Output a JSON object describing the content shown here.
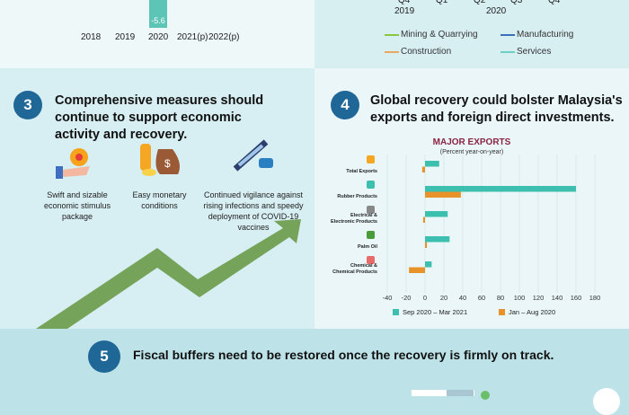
{
  "top_left": {
    "bar_label": "-5.6",
    "years": [
      "2018",
      "2019",
      "2020",
      "2021(p)",
      "2022(p)"
    ],
    "bar_color": "#5cc5b5"
  },
  "top_right": {
    "quarters": [
      "Q4",
      "Q1",
      "Q2",
      "Q3",
      "Q4"
    ],
    "years": [
      "2019",
      "2020"
    ],
    "legend": [
      {
        "label": "Mining & Quarrying",
        "color": "#8cc63f"
      },
      {
        "label": "Manufacturing",
        "color": "#3b6fb6"
      },
      {
        "label": "Construction",
        "color": "#e8a860"
      },
      {
        "label": "Services",
        "color": "#6ccfc4"
      }
    ]
  },
  "section3": {
    "number": "3",
    "heading": "Comprehensive measures should continue to support economic activity and recovery.",
    "items": [
      {
        "icon": "hand-gear-icon",
        "caption": "Swift and sizable economic stimulus package"
      },
      {
        "icon": "money-bag-icon",
        "caption": "Easy monetary conditions"
      },
      {
        "icon": "vaccine-mask-icon",
        "caption": "Continued vigilance against rising infections and speedy deployment of COVID-19 vaccines"
      }
    ]
  },
  "section4": {
    "number": "4",
    "heading": "Global recovery could bolster Malaysia's exports and foreign direct investments."
  },
  "section5": {
    "number": "5",
    "text": "Fiscal buffers need to be restored once the recovery is firmly on track."
  },
  "chart_data": {
    "type": "bar",
    "orientation": "horizontal",
    "title": "MAJOR EXPORTS",
    "subtitle": "(Percent year-on-year)",
    "categories": [
      "Total Exports",
      "Rubber Products",
      "Electrical & Electronic Products",
      "Palm Oil",
      "Chemical & Chemical Products"
    ],
    "series": [
      {
        "name": "Sep 2020 – Mar 2021",
        "color": "#3cbfae",
        "values": [
          15,
          160,
          24,
          26,
          7
        ]
      },
      {
        "name": "Jan – Aug 2020",
        "color": "#e8922a",
        "values": [
          -3,
          38,
          -2,
          2,
          -17
        ]
      }
    ],
    "xlim": [
      -40,
      180
    ],
    "xticks": [
      -40,
      -20,
      0,
      20,
      40,
      60,
      80,
      100,
      120,
      140,
      160,
      180
    ],
    "grid": true,
    "legend": "bottom"
  }
}
